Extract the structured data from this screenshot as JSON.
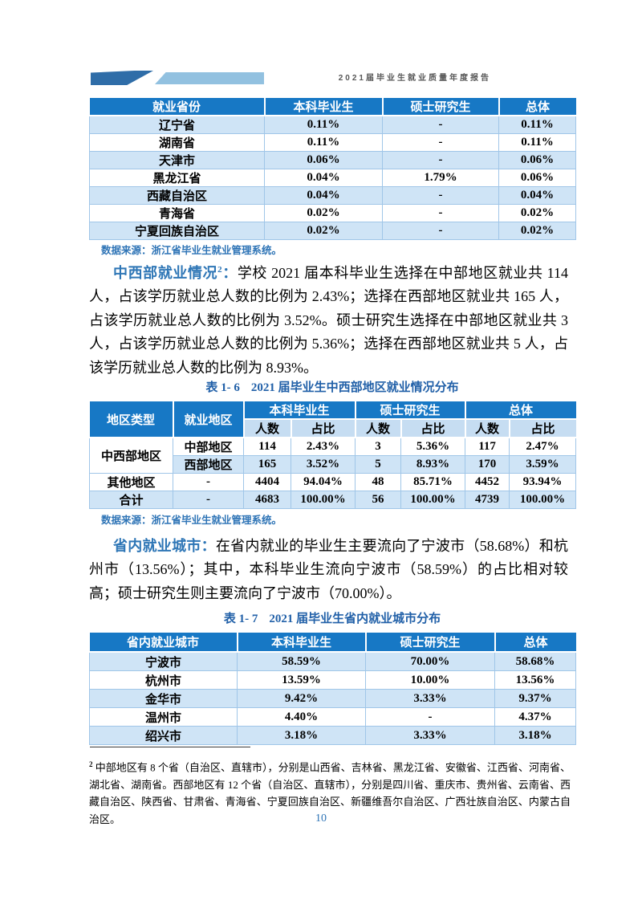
{
  "header": {
    "report_title": "2021届毕业生就业质量年度报告"
  },
  "colors": {
    "table_header_blue": "#1778c5",
    "row_light_blue": "#cfe4f6",
    "subheader_blue": "#c6ddf2",
    "accent_text_blue": "#2e74b6",
    "caption_blue": "#2160a8",
    "logo_dark_blue": "#2f6da8",
    "logo_light_blue": "#92c1e0"
  },
  "province_table": {
    "columns": [
      "就业省份",
      "本科毕业生",
      "硕士研究生",
      "总体"
    ],
    "rows": [
      [
        "辽宁省",
        "0.11%",
        "-",
        "0.11%"
      ],
      [
        "湖南省",
        "0.11%",
        "-",
        "0.11%"
      ],
      [
        "天津市",
        "0.06%",
        "-",
        "0.06%"
      ],
      [
        "黑龙江省",
        "0.04%",
        "1.79%",
        "0.06%"
      ],
      [
        "西藏自治区",
        "0.04%",
        "-",
        "0.04%"
      ],
      [
        "青海省",
        "0.02%",
        "-",
        "0.02%"
      ],
      [
        "宁夏回族自治区",
        "0.02%",
        "-",
        "0.02%"
      ]
    ]
  },
  "source_note": "数据来源：浙江省毕业生就业管理系统。",
  "midwest_paragraph": {
    "lead": "中西部就业情况",
    "sup": "2",
    "colon": "：",
    "body": "学校 2021 届本科毕业生选择在中部地区就业共 114 人，占该学历就业总人数的比例为 2.43%；选择在西部地区就业共 165 人，占该学历就业总人数的比例为 3.52%。硕士研究生选择在中部地区就业共 3 人，占该学历就业总人数的比例为 5.36%；选择在西部地区就业共 5 人，占该学历就业总人数的比例为 8.93%。"
  },
  "midwest_table": {
    "caption_prefix": "表 1- 6",
    "caption_title": "2021 届毕业生中西部地区就业情况分布",
    "col_headers": {
      "region_type": "地区类型",
      "employment_region": "就业地区",
      "bachelor": "本科毕业生",
      "master": "硕士研究生",
      "overall": "总体",
      "count": "人数",
      "ratio": "占比"
    },
    "rows": [
      [
        {
          "v": "中西部地区",
          "rowspan": 2,
          "cls": "span-cell"
        },
        "中部地区",
        "114",
        "2.43%",
        "3",
        "5.36%",
        "117",
        "2.47%"
      ],
      [
        "西部地区",
        "165",
        "3.52%",
        "5",
        "8.93%",
        "170",
        "3.59%"
      ],
      [
        "其他地区",
        "-",
        "4404",
        "94.04%",
        "48",
        "85.71%",
        "4452",
        "93.94%"
      ],
      [
        "合计",
        "-",
        "4683",
        "100.00%",
        "56",
        "100.00%",
        "4739",
        "100.00%"
      ]
    ]
  },
  "city_paragraph": {
    "lead": "省内就业城市",
    "colon": "：",
    "body": "在省内就业的毕业生主要流向了宁波市（58.68%）和杭州市（13.56%）；其中，本科毕业生流向宁波市（58.59%）的占比相对较高；硕士研究生则主要流向了宁波市（70.00%）。"
  },
  "city_table": {
    "caption_prefix": "表 1- 7",
    "caption_title": "2021 届毕业生省内就业城市分布",
    "columns": [
      "省内就业城市",
      "本科毕业生",
      "硕士研究生",
      "总体"
    ],
    "rows": [
      [
        "宁波市",
        "58.59%",
        "70.00%",
        "58.68%"
      ],
      [
        "杭州市",
        "13.59%",
        "10.00%",
        "13.56%"
      ],
      [
        "金华市",
        "9.42%",
        "3.33%",
        "9.37%"
      ],
      [
        "温州市",
        "4.40%",
        "-",
        "4.37%"
      ],
      [
        "绍兴市",
        "3.18%",
        "3.33%",
        "3.18%"
      ]
    ]
  },
  "footnote": {
    "sup": "2",
    "text": " 中部地区有 8 个省（自治区、直辖市），分别是山西省、吉林省、黑龙江省、安徽省、江西省、河南省、湖北省、湖南省。西部地区有 12 个省（自治区、直辖市），分别是四川省、重庆市、贵州省、云南省、西藏自治区、陕西省、甘肃省、青海省、宁夏回族自治区、新疆维吾尔自治区、广西壮族自治区、内蒙古自治区。"
  },
  "page_number": "10"
}
